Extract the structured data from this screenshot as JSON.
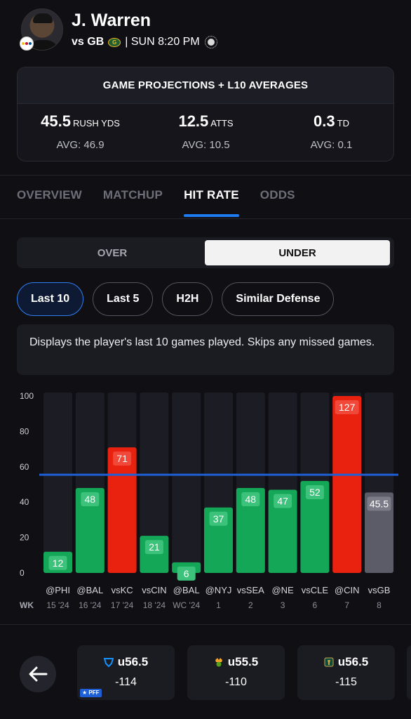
{
  "player": {
    "name": "J. Warren",
    "opponent": "vs GB",
    "game_time": "| SUN 8:20 PM"
  },
  "projections": {
    "title": "GAME PROJECTIONS + L10 AVERAGES",
    "items": [
      {
        "value": "45.5",
        "unit": "RUSH YDS",
        "avg": "AVG: 46.9"
      },
      {
        "value": "12.5",
        "unit": "ATTS",
        "avg": "AVG: 10.5"
      },
      {
        "value": "0.3",
        "unit": "TD",
        "avg": "AVG: 0.1"
      }
    ]
  },
  "tabs": [
    "OVERVIEW",
    "MATCHUP",
    "HIT RATE",
    "ODDS"
  ],
  "active_tab": "HIT RATE",
  "toggle": {
    "over": "OVER",
    "under": "UNDER",
    "selected": "UNDER"
  },
  "filters": [
    "Last 10",
    "Last 5",
    "H2H",
    "Similar Defense"
  ],
  "active_filter": "Last 10",
  "description": "Displays the player's last 10 games played. Skips any missed games.",
  "chart_data": {
    "type": "bar",
    "categories": [
      "@PHI",
      "@BAL",
      "vsKC",
      "vsCIN",
      "@BAL",
      "@NYJ",
      "vsSEA",
      "@NE",
      "vsCLE",
      "@CIN",
      "vsGB"
    ],
    "weeks": [
      "15 '24",
      "16 '24",
      "17 '24",
      "18 '24",
      "WC '24",
      "1",
      "2",
      "3",
      "6",
      "7",
      "8"
    ],
    "week_label": "WK",
    "values": [
      12,
      48,
      71,
      21,
      6,
      37,
      48,
      47,
      52,
      127,
      45.5
    ],
    "value_labels": [
      "12",
      "48",
      "71",
      "21",
      "6",
      "37",
      "48",
      "47",
      "52",
      "127",
      "45.5"
    ],
    "status": [
      "under",
      "under",
      "over",
      "under",
      "under",
      "under",
      "under",
      "under",
      "under",
      "over",
      "projection"
    ],
    "line_value": 55.5,
    "ylim": [
      0,
      100
    ],
    "yticks": [
      0,
      20,
      40,
      60,
      80,
      100
    ],
    "colors": {
      "under": "#14a758",
      "over": "#e8220f",
      "projection": "#5c5c68",
      "track": "#1c1c24",
      "line": "#1e5fd6"
    }
  },
  "books": [
    {
      "line": "u56.5",
      "odds": "-114",
      "badge": "PFF"
    },
    {
      "line": "u55.5",
      "odds": "-110"
    },
    {
      "line": "u56.5",
      "odds": "-115"
    }
  ]
}
